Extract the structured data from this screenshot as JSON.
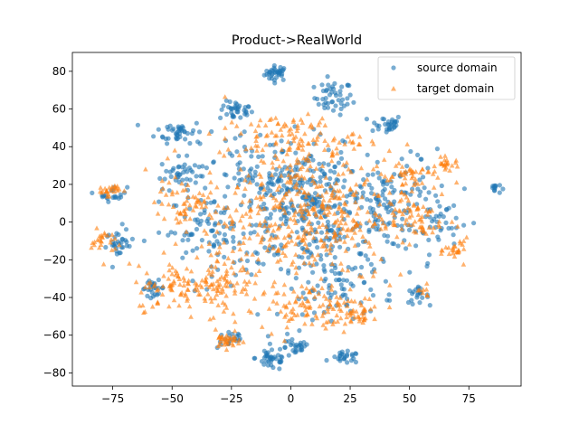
{
  "chart_data": {
    "type": "scatter",
    "title": "Product->RealWorld",
    "xlabel": "",
    "ylabel": "",
    "xlim": [
      -92,
      97
    ],
    "ylim": [
      -87,
      90
    ],
    "x_ticks": [
      -75,
      -50,
      -25,
      0,
      25,
      50,
      75
    ],
    "y_ticks": [
      -80,
      -60,
      -40,
      -20,
      0,
      20,
      40,
      60,
      80
    ],
    "x_tick_labels": [
      "−75",
      "−50",
      "−25",
      "0",
      "25",
      "50",
      "75"
    ],
    "y_tick_labels": [
      "−80",
      "−60",
      "−40",
      "−20",
      "0",
      "20",
      "40",
      "60",
      "80"
    ],
    "grid": false,
    "legend_position": "top-right",
    "series": [
      {
        "name": "source domain",
        "marker": "circle",
        "color": "#1f77b4",
        "clusters": [
          {
            "cx": -6,
            "cy": 79,
            "sx": 2.5,
            "sy": 2.0,
            "n": 35
          },
          {
            "cx": 18,
            "cy": 66,
            "sx": 4.0,
            "sy": 4.5,
            "n": 45
          },
          {
            "cx": -23,
            "cy": 59,
            "sx": 3.5,
            "sy": 2.5,
            "n": 35
          },
          {
            "cx": 40,
            "cy": 52,
            "sx": 3.5,
            "sy": 2.5,
            "n": 30
          },
          {
            "cx": -47,
            "cy": 48,
            "sx": 5.0,
            "sy": 3.0,
            "n": 40
          },
          {
            "cx": -47,
            "cy": 26,
            "sx": 4.0,
            "sy": 4.0,
            "n": 35
          },
          {
            "cx": 86,
            "cy": 18,
            "sx": 1.2,
            "sy": 1.5,
            "n": 12
          },
          {
            "cx": -75,
            "cy": 15,
            "sx": 3.0,
            "sy": 2.0,
            "n": 20
          },
          {
            "cx": -72,
            "cy": -12,
            "sx": 3.0,
            "sy": 3.5,
            "n": 30
          },
          {
            "cx": -58,
            "cy": -35,
            "sx": 2.5,
            "sy": 2.0,
            "n": 25
          },
          {
            "cx": 53,
            "cy": -39,
            "sx": 2.5,
            "sy": 2.0,
            "n": 20
          },
          {
            "cx": -25,
            "cy": -62,
            "sx": 3.0,
            "sy": 2.5,
            "n": 20
          },
          {
            "cx": -8,
            "cy": -72,
            "sx": 3.5,
            "sy": 3.5,
            "n": 40
          },
          {
            "cx": 2,
            "cy": -67,
            "sx": 3.0,
            "sy": 2.5,
            "n": 25
          },
          {
            "cx": 23,
            "cy": -72,
            "sx": 3.0,
            "sy": 1.5,
            "n": 25
          },
          {
            "cx": 10,
            "cy": 5,
            "sx": 20.0,
            "sy": 16.0,
            "n": 320
          },
          {
            "cx": -10,
            "cy": 25,
            "sx": 14.0,
            "sy": 12.0,
            "n": 120
          },
          {
            "cx": 45,
            "cy": 10,
            "sx": 10.0,
            "sy": 14.0,
            "n": 90
          },
          {
            "cx": -35,
            "cy": -5,
            "sx": 12.0,
            "sy": 10.0,
            "n": 80
          },
          {
            "cx": 20,
            "cy": -35,
            "sx": 12.0,
            "sy": 8.0,
            "n": 80
          },
          {
            "cx": 65,
            "cy": 0,
            "sx": 6.0,
            "sy": 8.0,
            "n": 30
          }
        ]
      },
      {
        "name": "target domain",
        "marker": "triangle",
        "color": "#ff7f0e",
        "clusters": [
          {
            "cx": -77,
            "cy": 17,
            "sx": 2.5,
            "sy": 1.5,
            "n": 25
          },
          {
            "cx": -79,
            "cy": -10,
            "sx": 2.5,
            "sy": 3.0,
            "n": 25
          },
          {
            "cx": -27,
            "cy": -63,
            "sx": 3.0,
            "sy": 2.0,
            "n": 35
          },
          {
            "cx": 66,
            "cy": 31,
            "sx": 2.5,
            "sy": 1.5,
            "n": 20
          },
          {
            "cx": 70,
            "cy": -15,
            "sx": 2.5,
            "sy": 3.0,
            "n": 25
          },
          {
            "cx": 56,
            "cy": -37,
            "sx": 1.5,
            "sy": 1.5,
            "n": 8
          },
          {
            "cx": 5,
            "cy": 5,
            "sx": 22.0,
            "sy": 18.0,
            "n": 450
          },
          {
            "cx": -45,
            "cy": -35,
            "sx": 10.0,
            "sy": 6.0,
            "n": 90
          },
          {
            "cx": -28,
            "cy": -30,
            "sx": 6.0,
            "sy": 10.0,
            "n": 70
          },
          {
            "cx": 10,
            "cy": -45,
            "sx": 12.0,
            "sy": 6.0,
            "n": 110
          },
          {
            "cx": 0,
            "cy": 45,
            "sx": 14.0,
            "sy": 6.0,
            "n": 100
          },
          {
            "cx": -45,
            "cy": 10,
            "sx": 6.0,
            "sy": 6.0,
            "n": 50
          },
          {
            "cx": 50,
            "cy": 25,
            "sx": 6.0,
            "sy": 4.0,
            "n": 40
          },
          {
            "cx": 52,
            "cy": 2,
            "sx": 6.0,
            "sy": 6.0,
            "n": 50
          },
          {
            "cx": 28,
            "cy": -50,
            "sx": 4.0,
            "sy": 3.0,
            "n": 25
          }
        ]
      }
    ]
  }
}
